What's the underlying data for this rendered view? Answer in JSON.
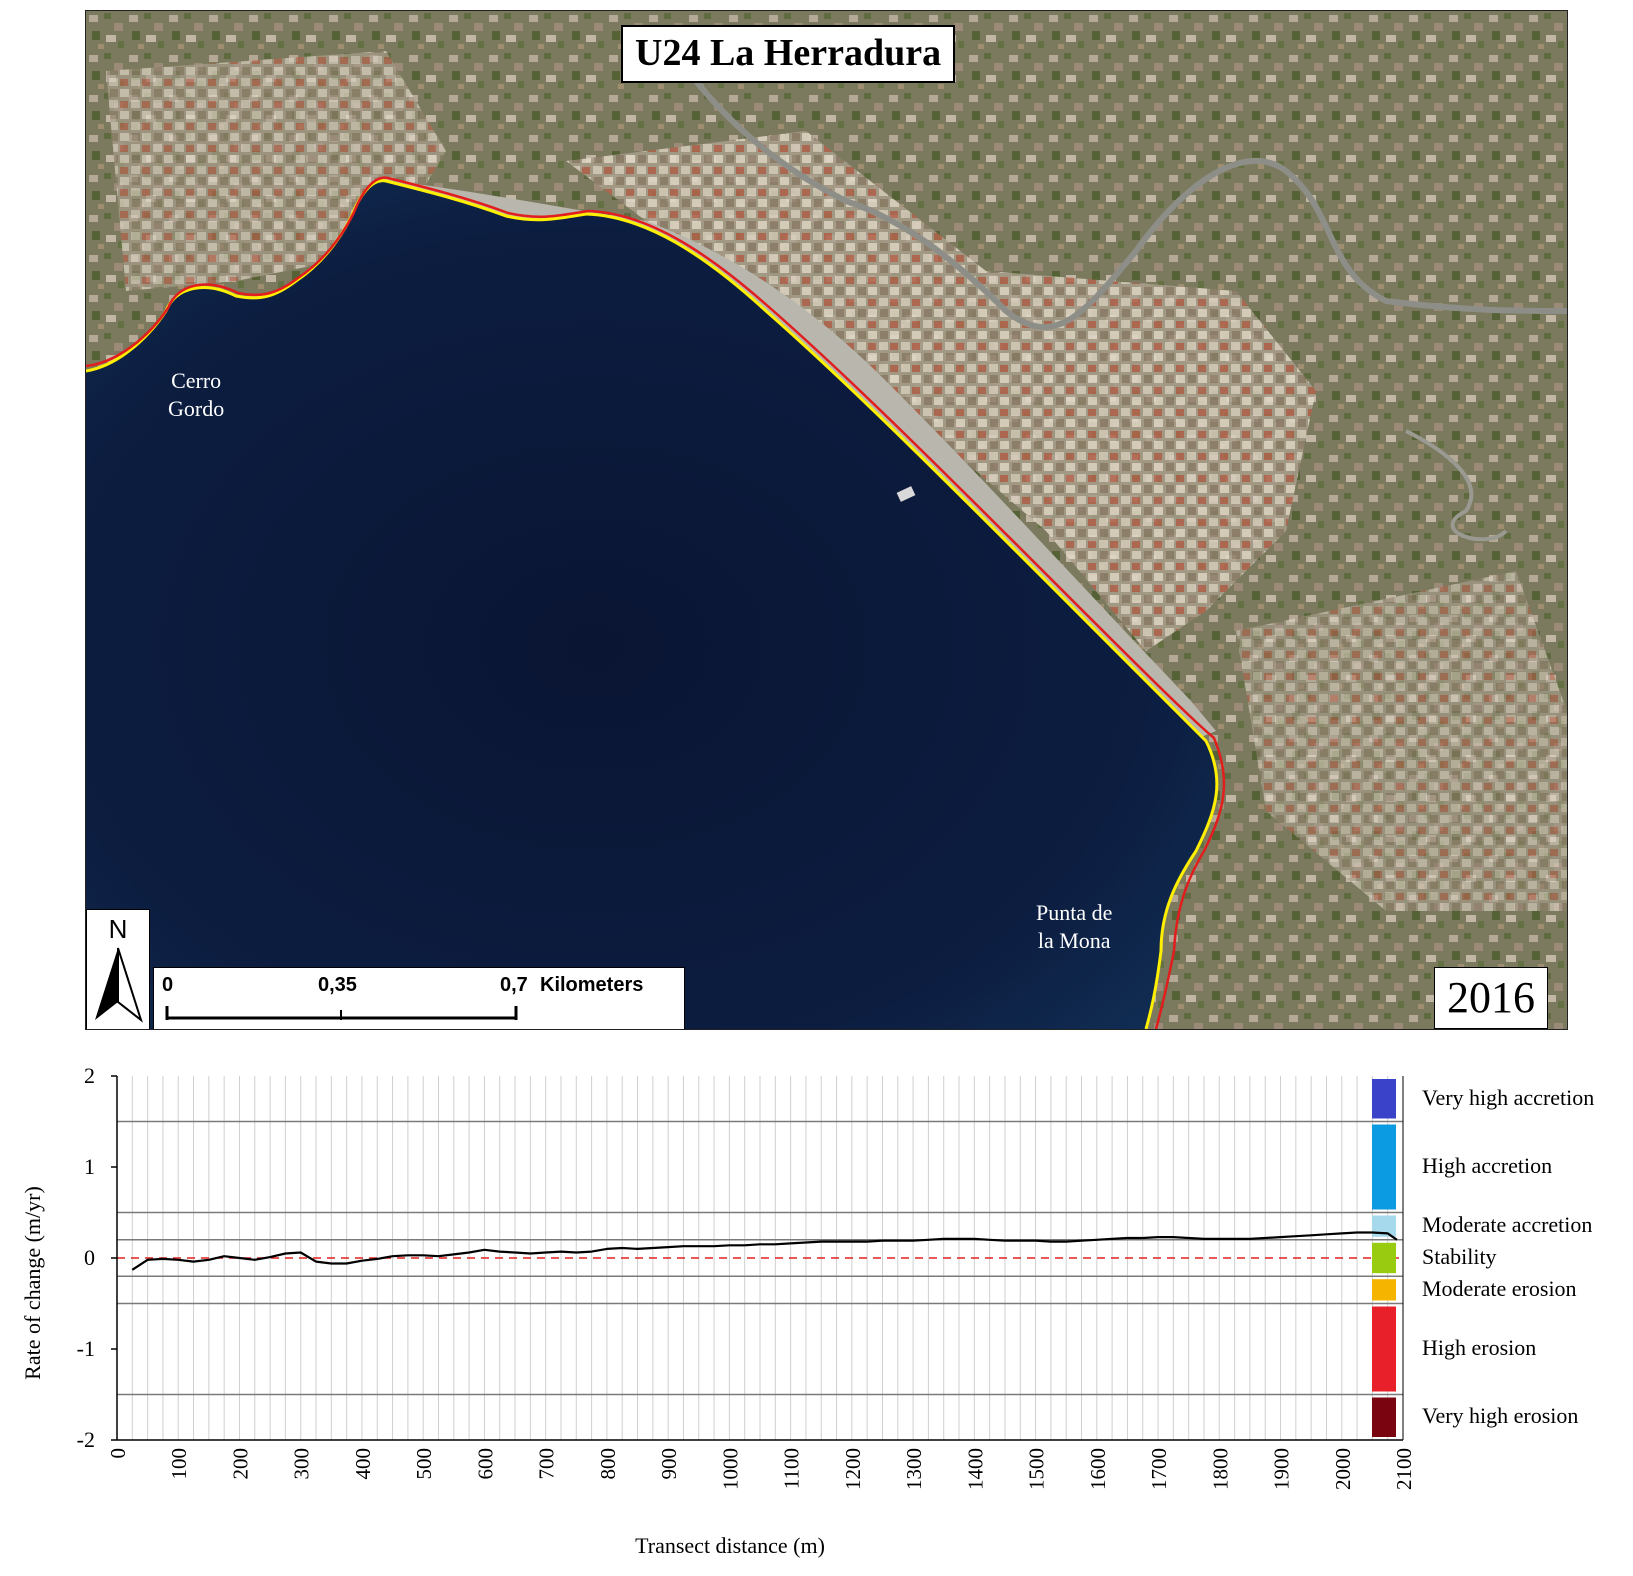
{
  "map": {
    "title": "U24 La Herradura",
    "year": "2016",
    "places": [
      {
        "name": "Cerro",
        "name2": "Gordo"
      },
      {
        "name": "Punta de",
        "name2": "la Mona"
      }
    ],
    "north_label": "N",
    "scale": {
      "t0": "0",
      "t1": "0,35",
      "t2": "0,7",
      "unit": "Kilometers"
    },
    "colors": {
      "sea": "#0b1a3a",
      "land": "#7d7a62",
      "shoreline_old": "#ffef00",
      "shoreline_new": "#e21d1d"
    }
  },
  "chart_data": {
    "type": "line",
    "xlabel": "Transect distance (m)",
    "ylabel": "Rate of change (m/yr)",
    "xlim": [
      0,
      2100
    ],
    "ylim": [
      -2,
      2
    ],
    "x_ticks": [
      "0",
      "100",
      "200",
      "300",
      "400",
      "500",
      "600",
      "700",
      "800",
      "900",
      "1000",
      "1100",
      "1200",
      "1300",
      "1400",
      "1500",
      "1600",
      "1700",
      "1800",
      "1900",
      "2000",
      "2100"
    ],
    "y_ticks": [
      "2",
      "1",
      "0",
      "-1",
      "-2"
    ],
    "class_boundaries": [
      1.5,
      0.5,
      0.2,
      -0.2,
      -0.5,
      -1.5
    ],
    "zero_line_color": "#e02020",
    "series": [
      {
        "x": [
          25,
          50,
          75,
          100,
          125,
          150,
          175,
          200,
          225,
          250,
          275,
          300,
          325,
          350,
          375,
          400,
          425,
          450,
          475,
          500,
          525,
          550,
          575,
          600,
          625,
          650,
          675,
          700,
          725,
          750,
          775,
          800,
          825,
          850,
          875,
          900,
          925,
          950,
          975,
          1000,
          1025,
          1050,
          1075,
          1100,
          1125,
          1150,
          1175,
          1200,
          1225,
          1250,
          1275,
          1300,
          1325,
          1350,
          1375,
          1400,
          1425,
          1450,
          1475,
          1500,
          1525,
          1550,
          1575,
          1600,
          1625,
          1650,
          1675,
          1700,
          1725,
          1750,
          1775,
          1800,
          1825,
          1850,
          1875,
          1900,
          1925,
          1950,
          1975,
          2000,
          2025,
          2050,
          2075,
          2090
        ],
        "y": [
          -0.13,
          -0.02,
          -0.01,
          -0.02,
          -0.04,
          -0.02,
          0.02,
          0.0,
          -0.02,
          0.01,
          0.05,
          0.06,
          -0.04,
          -0.06,
          -0.06,
          -0.03,
          -0.01,
          0.02,
          0.03,
          0.03,
          0.02,
          0.04,
          0.06,
          0.09,
          0.07,
          0.06,
          0.05,
          0.06,
          0.07,
          0.06,
          0.07,
          0.1,
          0.11,
          0.1,
          0.11,
          0.12,
          0.13,
          0.13,
          0.13,
          0.14,
          0.14,
          0.15,
          0.15,
          0.16,
          0.17,
          0.18,
          0.18,
          0.18,
          0.18,
          0.19,
          0.19,
          0.19,
          0.2,
          0.21,
          0.21,
          0.21,
          0.2,
          0.19,
          0.19,
          0.19,
          0.18,
          0.18,
          0.19,
          0.2,
          0.21,
          0.22,
          0.22,
          0.23,
          0.23,
          0.22,
          0.21,
          0.21,
          0.21,
          0.21,
          0.22,
          0.23,
          0.24,
          0.25,
          0.26,
          0.27,
          0.28,
          0.28,
          0.27,
          0.2
        ]
      }
    ],
    "legend": [
      {
        "label": "Very high accretion",
        "color": "#3a42c9",
        "range": [
          1.5,
          2
        ]
      },
      {
        "label": "High accretion",
        "color": "#0a9be3",
        "range": [
          0.5,
          1.5
        ]
      },
      {
        "label": "Moderate accretion",
        "color": "#a6d9ec",
        "range": [
          0.2,
          0.5
        ]
      },
      {
        "label": "Stability",
        "color": "#99cc11",
        "range": [
          -0.2,
          0.2
        ]
      },
      {
        "label": "Moderate erosion",
        "color": "#f4b400",
        "range": [
          -0.5,
          -0.2
        ]
      },
      {
        "label": "High erosion",
        "color": "#e8202a",
        "range": [
          -1.5,
          -0.5
        ]
      },
      {
        "label": "Very high erosion",
        "color": "#7a0410",
        "range": [
          -2,
          -1.5
        ]
      }
    ]
  }
}
